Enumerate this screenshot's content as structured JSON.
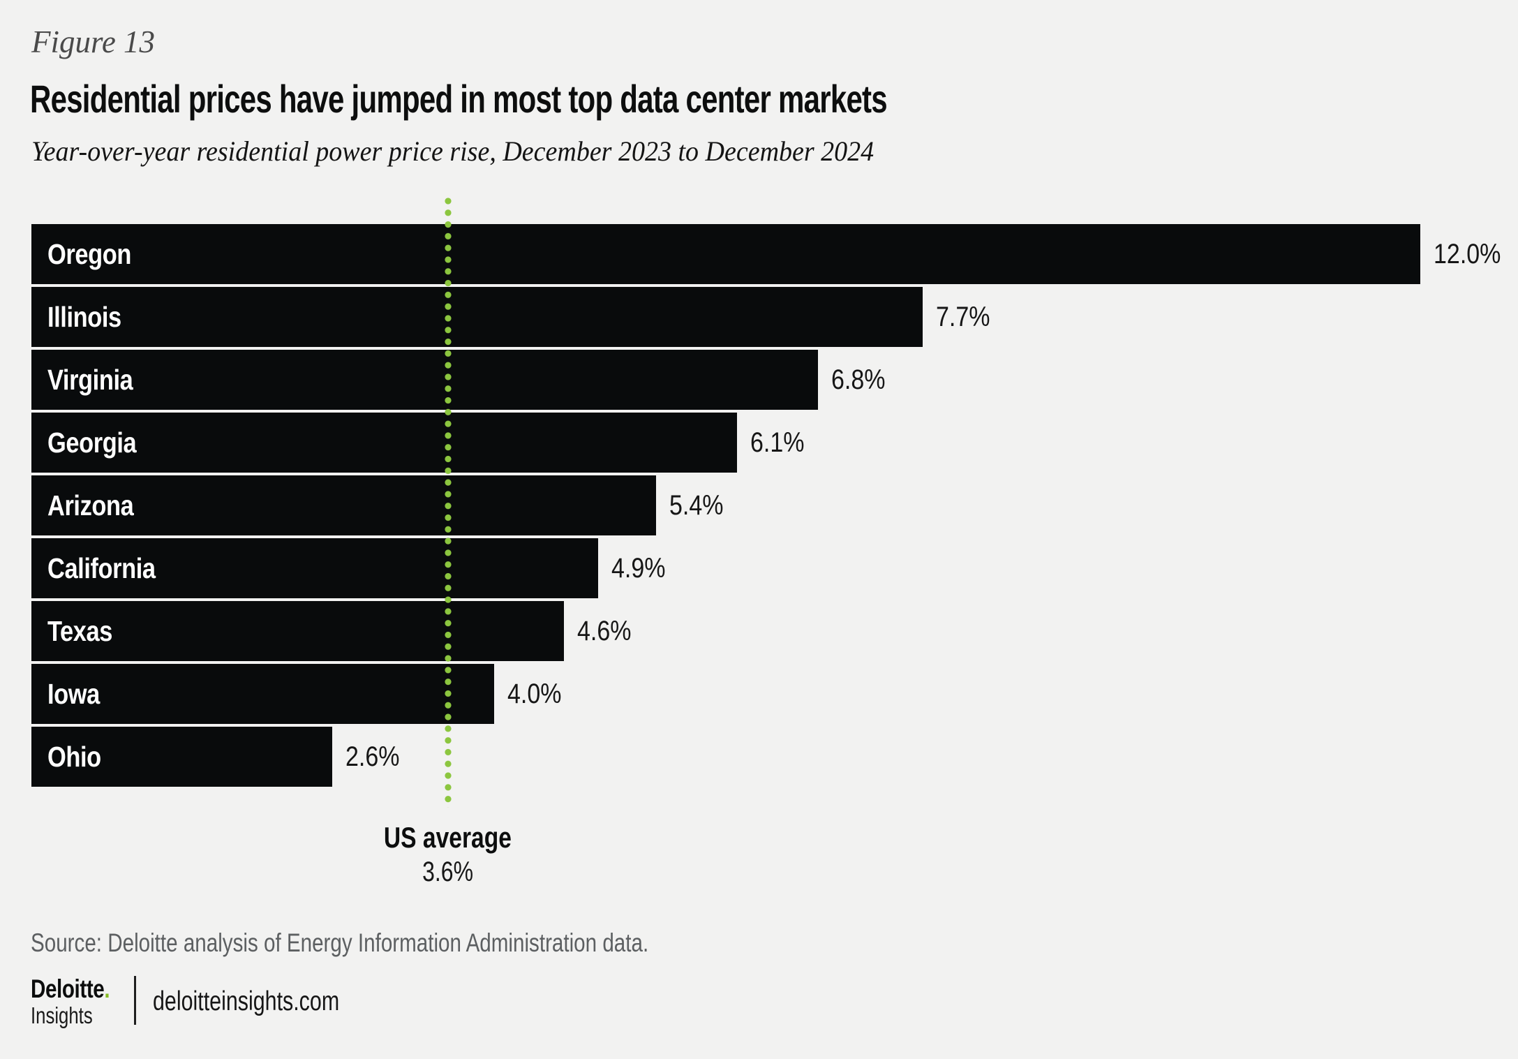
{
  "figure_label": "Figure 13",
  "title": "Residential prices have jumped in most top data center markets",
  "subtitle": "Year-over-year residential power price rise, December 2023 to December 2024",
  "chart_data": {
    "type": "bar",
    "orientation": "horizontal",
    "categories": [
      "Oregon",
      "Illinois",
      "Virginia",
      "Georgia",
      "Arizona",
      "California",
      "Texas",
      "Iowa",
      "Ohio"
    ],
    "values": [
      12.0,
      7.7,
      6.8,
      6.1,
      5.4,
      4.9,
      4.6,
      4.0,
      2.6
    ],
    "value_labels": [
      "12.0%",
      "7.7%",
      "6.8%",
      "6.1%",
      "5.4%",
      "4.9%",
      "4.6%",
      "4.0%",
      "2.6%"
    ],
    "reference_line": {
      "label": "US average",
      "value": 3.6,
      "value_label": "3.6%"
    },
    "xlim": [
      0,
      12.85
    ],
    "grid": false,
    "legend": false,
    "bar_color": "#090b0c",
    "reference_line_color": "#8cc63f"
  },
  "source": "Source: Deloitte analysis of Energy Information Administration data.",
  "footer": {
    "brand": "Deloitte",
    "brand_dot": ".",
    "brand_sub": "Insights",
    "site": "deloitteinsights.com"
  },
  "colors": {
    "background": "#f2f2f1",
    "bar": "#090b0c",
    "accent_green": "#86bc25",
    "dotted_line_green": "#8cc63f"
  }
}
